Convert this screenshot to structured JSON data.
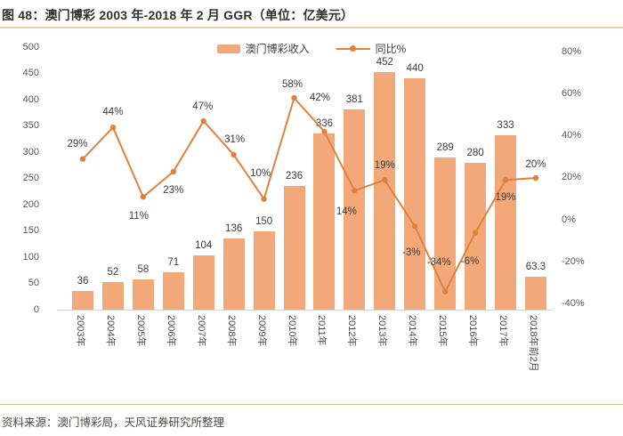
{
  "figure": {
    "title": "图 48：澳门博彩 2003 年-2018 年 2 月 GGR（单位：亿美元）",
    "source_note": "资料来源：澳门博彩局，天风证券研究所整理"
  },
  "legend": {
    "bar_label": "澳门博彩收入",
    "line_label": "同比%"
  },
  "colors": {
    "bar": "#f2a878",
    "line": "#e0813d",
    "value_text": "#3d3d3d",
    "axis_text": "#595959",
    "divider": "#e2d2a4",
    "baseline": "#d4d4d4"
  },
  "chart_data": {
    "type": "bar",
    "subtype": "bar+line combo, dual axis",
    "title": "澳门博彩 2003 年-2018 年 2 月 GGR（单位：亿美元）",
    "categories": [
      "2003年",
      "2004年",
      "2005年",
      "2006年",
      "2007年",
      "2008年",
      "2009年",
      "2010年",
      "2011年",
      "2012年",
      "2013年",
      "2014年",
      "2015年",
      "2016年",
      "2017年",
      "2018年前2月"
    ],
    "series": [
      {
        "name": "澳门博彩收入",
        "kind": "bar",
        "axis": "left",
        "values": [
          36,
          52,
          58,
          71,
          104,
          136,
          150,
          236,
          336,
          381,
          452,
          440,
          289,
          280,
          333,
          63.3
        ],
        "value_labels": [
          "36",
          "52",
          "58",
          "71",
          "104",
          "136",
          "150",
          "236",
          "336",
          "381",
          "452",
          "440",
          "289",
          "280",
          "333",
          "63.3"
        ]
      },
      {
        "name": "同比%",
        "kind": "line",
        "axis": "right",
        "values": [
          29,
          44,
          11,
          23,
          47,
          31,
          10,
          58,
          42,
          14,
          19,
          -3,
          -34,
          -6,
          19,
          20
        ],
        "value_labels": [
          "29%",
          "44%",
          "11%",
          "23%",
          "47%",
          "31%",
          "10%",
          "58%",
          "42%",
          "14%",
          "19%",
          "-3%",
          "-34%",
          "-6%",
          "19%",
          "20%"
        ],
        "label_offsets": [
          [
            -6,
            -16
          ],
          [
            0,
            -16
          ],
          [
            -5,
            23
          ],
          [
            0,
            22
          ],
          [
            -1,
            -15
          ],
          [
            1,
            -16
          ],
          [
            -4,
            -28
          ],
          [
            -2,
            -14
          ],
          [
            -5,
            -37
          ],
          [
            -9,
            25
          ],
          [
            0,
            -15
          ],
          [
            -4,
            31
          ],
          [
            -7,
            -32
          ],
          [
            -6,
            33
          ],
          [
            0,
            21
          ],
          [
            0,
            -14
          ]
        ]
      }
    ],
    "left_axis": {
      "min": 0,
      "max": 500,
      "ticks": [
        500,
        450,
        400,
        350,
        300,
        250,
        200,
        150,
        100,
        50,
        0
      ]
    },
    "right_axis": {
      "min": -40,
      "max": 80,
      "suffix": "%",
      "ticks": [
        80,
        60,
        40,
        20,
        0,
        -20,
        -40
      ]
    },
    "legend_position": "top-center",
    "grid": false,
    "x_tick_rotation_deg": 90
  }
}
